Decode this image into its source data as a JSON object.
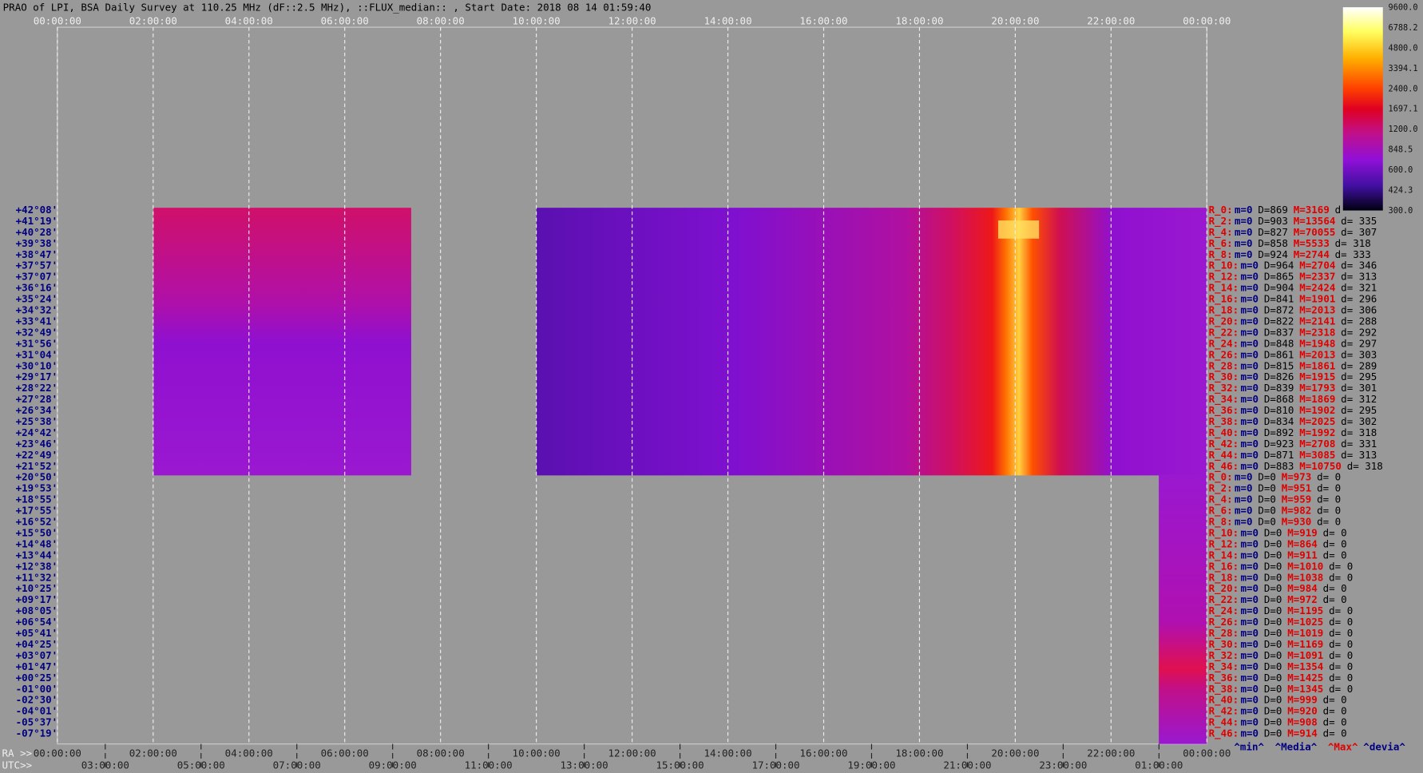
{
  "header": {
    "title": "PRAO of LPI, BSA Daily Survey at 110.25 MHz (dF::2.5 MHz), ::FLUX_median:: , Start Date: 2018 08 14 01:59:40"
  },
  "top_axis": {
    "labels": [
      "00:00:00",
      "02:00:00",
      "04:00:00",
      "06:00:00",
      "08:00:00",
      "10:00:00",
      "12:00:00",
      "14:00:00",
      "16:00:00",
      "18:00:00",
      "20:00:00",
      "22:00:00",
      "00:00:00"
    ]
  },
  "bottom_axis": {
    "ra_prefix": "RA >>",
    "ra_labels": [
      "00:00:00",
      "02:00:00",
      "04:00:00",
      "06:00:00",
      "08:00:00",
      "10:00:00",
      "12:00:00",
      "14:00:00",
      "16:00:00",
      "18:00:00",
      "20:00:00",
      "22:00:00",
      "00:00:00"
    ],
    "utc_prefix": "UTC>>",
    "utc_labels": [
      "03:00:00",
      "05:00:00",
      "07:00:00",
      "09:00:00",
      "11:00:00",
      "13:00:00",
      "15:00:00",
      "17:00:00",
      "19:00:00",
      "21:00:00",
      "23:00:00",
      "01:00:00"
    ]
  },
  "colorbar": {
    "labels": [
      "9600.0",
      "6788.2",
      "4800.0",
      "3394.1",
      "2400.0",
      "1697.1",
      "1200.0",
      "848.5",
      "600.0",
      "424.3",
      "300.0"
    ]
  },
  "declinations": [
    "+42°08'",
    "+41°19'",
    "+40°28'",
    "+39°38'",
    "+38°47'",
    "+37°57'",
    "+37°07'",
    "+36°16'",
    "+35°24'",
    "+34°32'",
    "+33°41'",
    "+32°49'",
    "+31°56'",
    "+31°04'",
    "+30°10'",
    "+29°17'",
    "+28°22'",
    "+27°28'",
    "+26°34'",
    "+25°38'",
    "+24°42'",
    "+23°46'",
    "+22°49'",
    "+21°52'",
    "+20°50'",
    "+19°53'",
    "+18°55'",
    "+17°55'",
    "+16°52'",
    "+15°50'",
    "+14°48'",
    "+13°44'",
    "+12°38'",
    "+11°32'",
    "+10°25'",
    "+09°17'",
    "+08°05'",
    "+06°54'",
    "+05°41'",
    "+04°25'",
    "+03°07'",
    "+01°47'",
    "+00°25'",
    "-01°00'",
    "-02°30'",
    "-04°01'",
    "-05°37'",
    "-07°19'"
  ],
  "stats": [
    {
      "label": "R_0:",
      "min": "m=0",
      "median": "D=869",
      "max": "M=3169",
      "dev": "d"
    },
    {
      "label": "R_2:",
      "min": "m=0",
      "median": "D=903",
      "max": "M=13564",
      "dev": "d= 335"
    },
    {
      "label": "R_4:",
      "min": "m=0",
      "median": "D=827",
      "max": "M=70055",
      "dev": "d= 307"
    },
    {
      "label": "R_6:",
      "min": "m=0",
      "median": "D=858",
      "max": "M=5533",
      "dev": "d= 318"
    },
    {
      "label": "R_8:",
      "min": "m=0",
      "median": "D=924",
      "max": "M=2744",
      "dev": "d= 333"
    },
    {
      "label": "R_10:",
      "min": "m=0",
      "median": "D=964",
      "max": "M=2704",
      "dev": "d= 346"
    },
    {
      "label": "R_12:",
      "min": "m=0",
      "median": "D=865",
      "max": "M=2337",
      "dev": "d= 313"
    },
    {
      "label": "R_14:",
      "min": "m=0",
      "median": "D=904",
      "max": "M=2424",
      "dev": "d= 321"
    },
    {
      "label": "R_16:",
      "min": "m=0",
      "median": "D=841",
      "max": "M=1901",
      "dev": "d= 296"
    },
    {
      "label": "R_18:",
      "min": "m=0",
      "median": "D=872",
      "max": "M=2013",
      "dev": "d= 306"
    },
    {
      "label": "R_20:",
      "min": "m=0",
      "median": "D=822",
      "max": "M=2141",
      "dev": "d= 288"
    },
    {
      "label": "R_22:",
      "min": "m=0",
      "median": "D=837",
      "max": "M=2318",
      "dev": "d= 292"
    },
    {
      "label": "R_24:",
      "min": "m=0",
      "median": "D=848",
      "max": "M=1948",
      "dev": "d= 297"
    },
    {
      "label": "R_26:",
      "min": "m=0",
      "median": "D=861",
      "max": "M=2013",
      "dev": "d= 303"
    },
    {
      "label": "R_28:",
      "min": "m=0",
      "median": "D=815",
      "max": "M=1861",
      "dev": "d= 289"
    },
    {
      "label": "R_30:",
      "min": "m=0",
      "median": "D=826",
      "max": "M=1915",
      "dev": "d= 295"
    },
    {
      "label": "R_32:",
      "min": "m=0",
      "median": "D=839",
      "max": "M=1793",
      "dev": "d= 301"
    },
    {
      "label": "R_34:",
      "min": "m=0",
      "median": "D=868",
      "max": "M=1869",
      "dev": "d= 312"
    },
    {
      "label": "R_36:",
      "min": "m=0",
      "median": "D=810",
      "max": "M=1902",
      "dev": "d= 295"
    },
    {
      "label": "R_38:",
      "min": "m=0",
      "median": "D=834",
      "max": "M=2025",
      "dev": "d= 302"
    },
    {
      "label": "R_40:",
      "min": "m=0",
      "median": "D=892",
      "max": "M=1992",
      "dev": "d= 318"
    },
    {
      "label": "R_42:",
      "min": "m=0",
      "median": "D=923",
      "max": "M=2708",
      "dev": "d= 331"
    },
    {
      "label": "R_44:",
      "min": "m=0",
      "median": "D=871",
      "max": "M=3085",
      "dev": "d= 313"
    },
    {
      "label": "R_46:",
      "min": "m=0",
      "median": "D=883",
      "max": "M=10750",
      "dev": "d= 318"
    },
    {
      "label": "R_0:",
      "min": "m=0",
      "median": "D=0",
      "max": "M=973",
      "dev": "d= 0"
    },
    {
      "label": "R_2:",
      "min": "m=0",
      "median": "D=0",
      "max": "M=951",
      "dev": "d= 0"
    },
    {
      "label": "R_4:",
      "min": "m=0",
      "median": "D=0",
      "max": "M=959",
      "dev": "d= 0"
    },
    {
      "label": "R_6:",
      "min": "m=0",
      "median": "D=0",
      "max": "M=982",
      "dev": "d= 0"
    },
    {
      "label": "R_8:",
      "min": "m=0",
      "median": "D=0",
      "max": "M=930",
      "dev": "d= 0"
    },
    {
      "label": "R_10:",
      "min": "m=0",
      "median": "D=0",
      "max": "M=919",
      "dev": "d= 0"
    },
    {
      "label": "R_12:",
      "min": "m=0",
      "median": "D=0",
      "max": "M=864",
      "dev": "d= 0"
    },
    {
      "label": "R_14:",
      "min": "m=0",
      "median": "D=0",
      "max": "M=911",
      "dev": "d= 0"
    },
    {
      "label": "R_16:",
      "min": "m=0",
      "median": "D=0",
      "max": "M=1010",
      "dev": "d= 0"
    },
    {
      "label": "R_18:",
      "min": "m=0",
      "median": "D=0",
      "max": "M=1038",
      "dev": "d= 0"
    },
    {
      "label": "R_20:",
      "min": "m=0",
      "median": "D=0",
      "max": "M=984",
      "dev": "d= 0"
    },
    {
      "label": "R_22:",
      "min": "m=0",
      "median": "D=0",
      "max": "M=972",
      "dev": "d= 0"
    },
    {
      "label": "R_24:",
      "min": "m=0",
      "median": "D=0",
      "max": "M=1195",
      "dev": "d= 0"
    },
    {
      "label": "R_26:",
      "min": "m=0",
      "median": "D=0",
      "max": "M=1025",
      "dev": "d= 0"
    },
    {
      "label": "R_28:",
      "min": "m=0",
      "median": "D=0",
      "max": "M=1019",
      "dev": "d= 0"
    },
    {
      "label": "R_30:",
      "min": "m=0",
      "median": "D=0",
      "max": "M=1169",
      "dev": "d= 0"
    },
    {
      "label": "R_32:",
      "min": "m=0",
      "median": "D=0",
      "max": "M=1091",
      "dev": "d= 0"
    },
    {
      "label": "R_34:",
      "min": "m=0",
      "median": "D=0",
      "max": "M=1354",
      "dev": "d= 0"
    },
    {
      "label": "R_36:",
      "min": "m=0",
      "median": "D=0",
      "max": "M=1425",
      "dev": "d= 0"
    },
    {
      "label": "R_38:",
      "min": "m=0",
      "median": "D=0",
      "max": "M=1345",
      "dev": "d= 0"
    },
    {
      "label": "R_40:",
      "min": "m=0",
      "median": "D=0",
      "max": "M=999",
      "dev": "d= 0"
    },
    {
      "label": "R_42:",
      "min": "m=0",
      "median": "D=0",
      "max": "M=920",
      "dev": "d= 0"
    },
    {
      "label": "R_44:",
      "min": "m=0",
      "median": "D=0",
      "max": "M=908",
      "dev": "d= 0"
    },
    {
      "label": "R_46:",
      "min": "m=0",
      "median": "D=0",
      "max": "M=914",
      "dev": "d= 0"
    }
  ],
  "legend": {
    "min": "^min^",
    "median": "^Media^",
    "max": "^Max^",
    "dev": "^devia^"
  }
}
